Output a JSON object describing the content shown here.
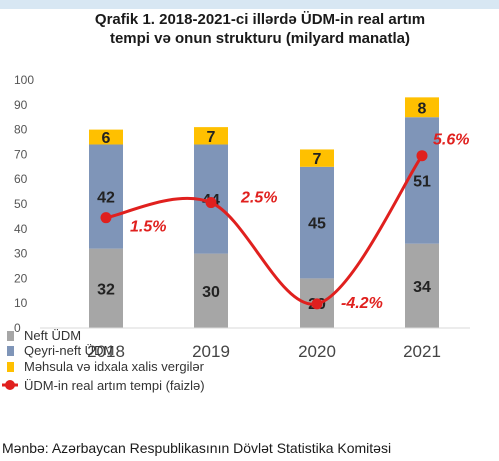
{
  "chart_data": {
    "type": "bar",
    "stacked": true,
    "title_lines": [
      "Qrafik 1. 2018-2021-ci illərdə ÜDM-in real artım",
      "tempi və onun strukturu (milyard manatla)"
    ],
    "categories": [
      "2018",
      "2019",
      "2020",
      "2021"
    ],
    "ylim": [
      0,
      100
    ],
    "yticks": [
      0,
      10,
      20,
      30,
      40,
      50,
      60,
      70,
      80,
      90,
      100
    ],
    "grid": false,
    "legend_position": "bottom-left",
    "series": [
      {
        "name": "Neft ÜDM",
        "values": [
          32,
          30,
          20,
          34
        ],
        "color": "#a6a6a6"
      },
      {
        "name": "Qeyri-neft ÜDM",
        "values": [
          42,
          44,
          45,
          51
        ],
        "color": "#7f95b8"
      },
      {
        "name": "Məhsula və idxala  xalis  vergilər",
        "values": [
          6,
          7,
          7,
          8
        ],
        "color": "#ffc000"
      }
    ],
    "line_series": {
      "name": "ÜDM-in real artım tempi (faizlə)",
      "values": [
        1.5,
        2.5,
        -4.2,
        5.6
      ],
      "labels": [
        "1.5%",
        "2.5%",
        "-4.2%",
        "5.6%"
      ],
      "color": "#e0201e"
    }
  },
  "source": "Mənbə: Azərbaycan Respublikasının Dövlət Statistika Komitəsi"
}
